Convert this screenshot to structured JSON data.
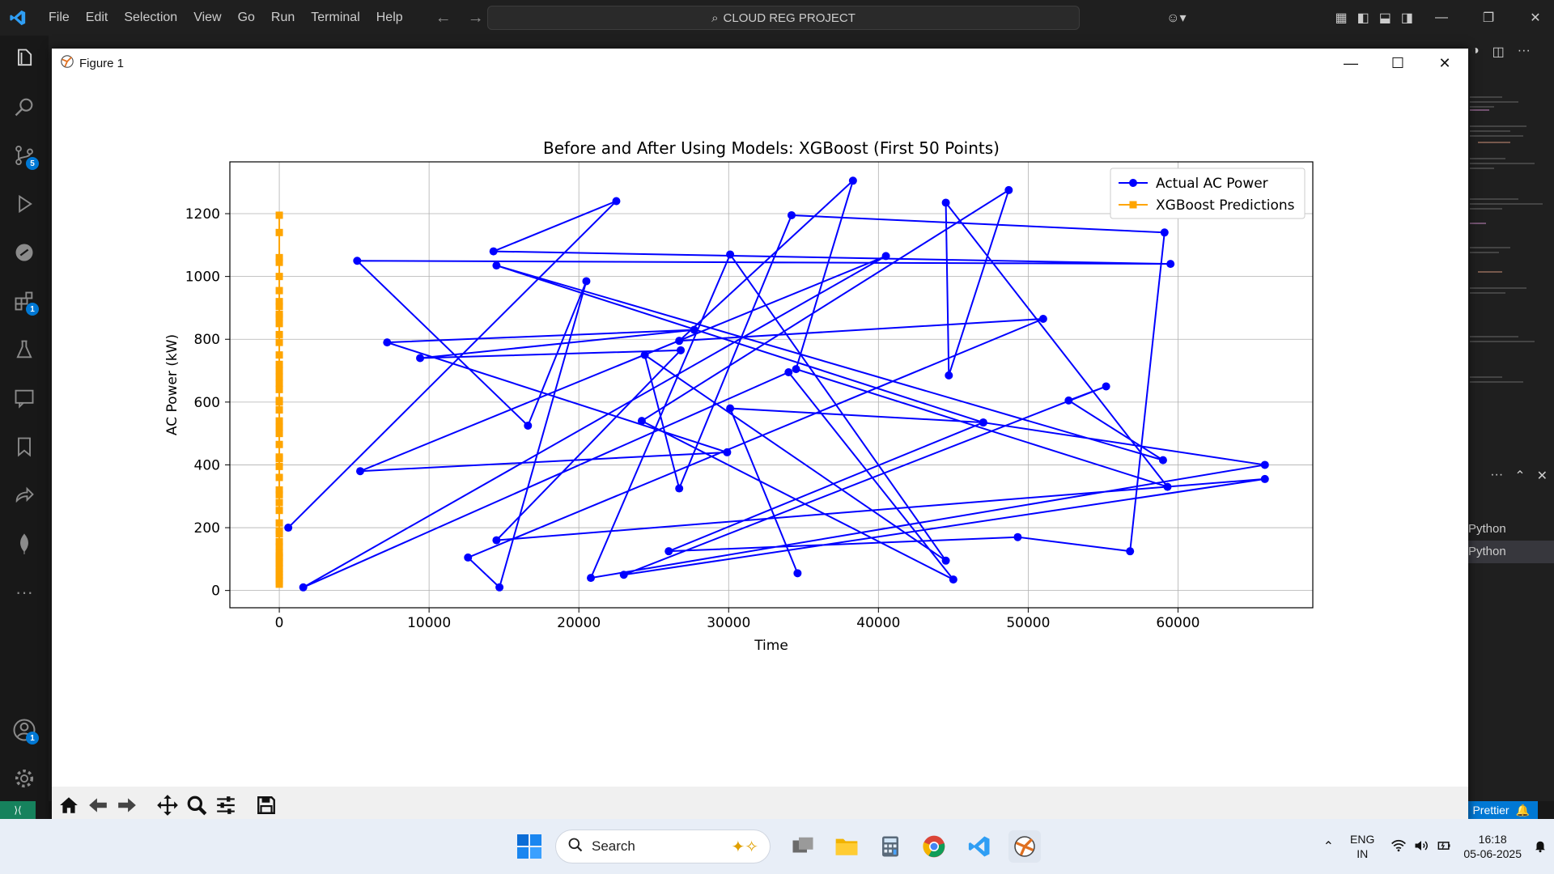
{
  "titlebar": {
    "menu": [
      "File",
      "Edit",
      "Selection",
      "View",
      "Go",
      "Run",
      "Terminal",
      "Help"
    ],
    "search_text": "CLOUD REG PROJECT"
  },
  "activity_bar": {
    "badges": {
      "source_control": "5",
      "extensions": "1",
      "accounts": "1"
    }
  },
  "right_panel": {
    "python_1": "Python",
    "python_2": "Python"
  },
  "statusbar": {
    "prettier": "Prettier"
  },
  "figure": {
    "window_title": "Figure 1"
  },
  "chart_data": {
    "type": "line",
    "title": "Before and After Using Models: XGBoost (First 50 Points)",
    "xlabel": "Time",
    "ylabel": "AC Power (kW)",
    "xlim": [
      -3300,
      69000
    ],
    "ylim": [
      -55,
      1365
    ],
    "xticks": [
      0,
      10000,
      20000,
      30000,
      40000,
      50000,
      60000
    ],
    "yticks": [
      0,
      200,
      400,
      600,
      800,
      1000,
      1200
    ],
    "grid": true,
    "legend_position": "top-right",
    "series": [
      {
        "name": "Actual AC Power",
        "color": "#0000ff",
        "marker": "circle",
        "x": [
          600,
          22500,
          14300,
          59500,
          5200,
          16600,
          20500,
          14700,
          12600,
          51000,
          26700,
          38300,
          34500,
          59300,
          44500,
          44700,
          48700,
          24200,
          45000,
          34000,
          1600,
          40500,
          5400,
          29900,
          7200,
          27700,
          9400,
          26800,
          14500,
          65800,
          23000,
          55200,
          52700,
          59000,
          14500,
          47000,
          65800,
          20800,
          30100,
          44500,
          24400,
          26700,
          34200,
          59100,
          56800,
          49300,
          26000,
          47000,
          30100,
          34600
        ],
        "y": [
          200,
          1240,
          1080,
          1040,
          1050,
          525,
          985,
          10,
          105,
          865,
          795,
          1305,
          705,
          330,
          1235,
          685,
          1275,
          540,
          35,
          695,
          10,
          1065,
          380,
          440,
          790,
          830,
          740,
          765,
          160,
          355,
          50,
          650,
          605,
          415,
          1035,
          535,
          400,
          40,
          1070,
          95,
          750,
          325,
          1195,
          1140,
          125,
          170,
          125,
          535,
          580,
          55
        ]
      },
      {
        "name": "XGBoost Predictions",
        "color": "#ffa500",
        "marker": "square",
        "x": [
          0,
          0,
          0,
          0,
          0,
          0,
          0,
          0,
          0,
          0,
          0,
          0,
          0,
          0,
          0,
          0,
          0,
          0,
          0,
          0,
          0,
          0,
          0,
          0,
          0,
          0,
          0,
          0,
          0,
          0,
          0,
          0,
          0,
          0,
          0,
          0,
          0,
          0,
          0,
          0,
          0,
          0,
          0,
          0,
          0,
          0,
          0,
          0,
          0,
          0
        ],
        "y": [
          1195,
          1140,
          1060,
          1045,
          955,
          905,
          880,
          850,
          815,
          750,
          720,
          700,
          660,
          640,
          605,
          575,
          540,
          500,
          465,
          425,
          395,
          320,
          305,
          255,
          215,
          190,
          155,
          120,
          105,
          85,
          70,
          50,
          30,
          20,
          40,
          60,
          90,
          110,
          140,
          180,
          280,
          360,
          420,
          520,
          600,
          680,
          790,
          870,
          920,
          1000
        ]
      }
    ]
  },
  "taskbar": {
    "search_label": "Search",
    "lang_1": "ENG",
    "lang_2": "IN",
    "time": "16:18",
    "date": "05-06-2025"
  }
}
